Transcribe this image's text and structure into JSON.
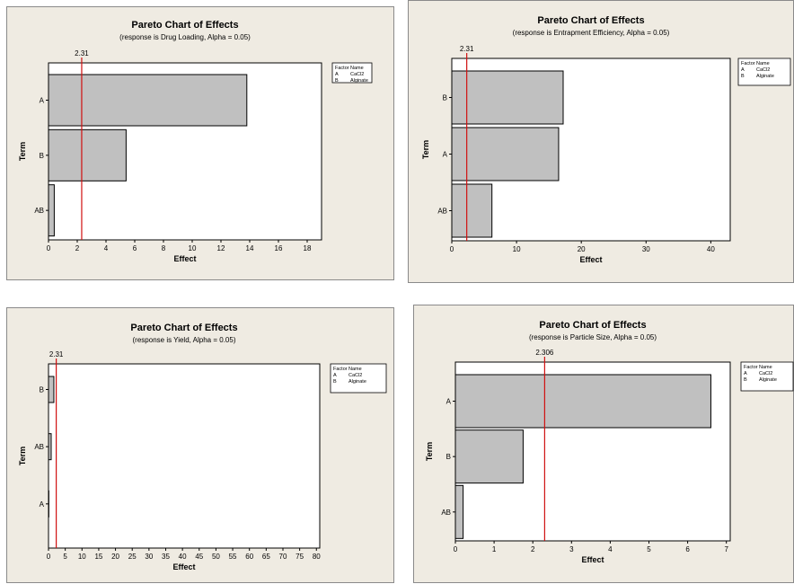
{
  "chart_data": [
    {
      "type": "bar",
      "orientation": "horizontal",
      "title": "Pareto Chart of Effects",
      "subtitle": "(response is Drug Loading, Alpha = 0.05)",
      "xlabel": "Effect",
      "ylabel": "Term",
      "categories": [
        "A",
        "B",
        "AB"
      ],
      "values": [
        13.8,
        5.4,
        0.4
      ],
      "xlim": [
        0,
        19
      ],
      "xticks": [
        "0",
        "2",
        "4",
        "6",
        "8",
        "10",
        "12",
        "14",
        "16",
        "18"
      ],
      "reference_line": {
        "value": 2.31,
        "label": "2.31"
      },
      "legend": {
        "header": [
          "Factor",
          "Name"
        ],
        "rows": [
          [
            "A",
            "CaCl2"
          ],
          [
            "B",
            "Alginate"
          ]
        ]
      }
    },
    {
      "type": "bar",
      "orientation": "horizontal",
      "title": "Pareto Chart of Effects",
      "subtitle": "(response is Entrapment Efficiency, Alpha = 0.05)",
      "xlabel": "Effect",
      "ylabel": "Term",
      "categories": [
        "B",
        "A",
        "AB"
      ],
      "values": [
        17.2,
        16.5,
        6.2
      ],
      "xlim": [
        0,
        43
      ],
      "xticks": [
        "0",
        "10",
        "20",
        "30",
        "40"
      ],
      "reference_line": {
        "value": 2.31,
        "label": "2.31"
      },
      "legend": {
        "header": [
          "Factor",
          "Name"
        ],
        "rows": [
          [
            "A",
            "CaCl2"
          ],
          [
            "B",
            "Alginate"
          ]
        ]
      }
    },
    {
      "type": "bar",
      "orientation": "horizontal",
      "title": "Pareto Chart of  Effects",
      "subtitle": "(response is Yield, Alpha = 0.05)",
      "xlabel": "Effect",
      "ylabel": "Term",
      "categories": [
        "B",
        "AB",
        "A"
      ],
      "values": [
        1.6,
        0.8,
        0.1
      ],
      "xlim": [
        0,
        81
      ],
      "xticks": [
        "0",
        "5",
        "10",
        "15",
        "20",
        "25",
        "30",
        "35",
        "40",
        "45",
        "50",
        "55",
        "60",
        "65",
        "70",
        "75",
        "80"
      ],
      "reference_line": {
        "value": 2.31,
        "label": "2.31"
      },
      "legend": {
        "header": [
          "Factor",
          "Name"
        ],
        "rows": [
          [
            "A",
            "CaCl2"
          ],
          [
            "B",
            "Alginate"
          ]
        ]
      }
    },
    {
      "type": "bar",
      "orientation": "horizontal",
      "title": "Pareto Chart of Effects",
      "subtitle": "(response is Particle Size, Alpha = 0.05)",
      "xlabel": "Effect",
      "ylabel": "Term",
      "categories": [
        "A",
        "B",
        "AB"
      ],
      "values": [
        6.6,
        1.75,
        0.2
      ],
      "xlim": [
        0,
        7.1
      ],
      "xticks": [
        "0",
        "1",
        "2",
        "3",
        "4",
        "5",
        "6",
        "7"
      ],
      "reference_line": {
        "value": 2.306,
        "label": "2.306"
      },
      "legend": {
        "header": [
          "Factor",
          "Name"
        ],
        "rows": [
          [
            "A",
            "CaCl2"
          ],
          [
            "B",
            "Alginate"
          ]
        ]
      }
    }
  ],
  "colors": {
    "panel_background": "#efebe2",
    "bar_fill": "#c0c0c0",
    "reference_line": "#d01010"
  }
}
